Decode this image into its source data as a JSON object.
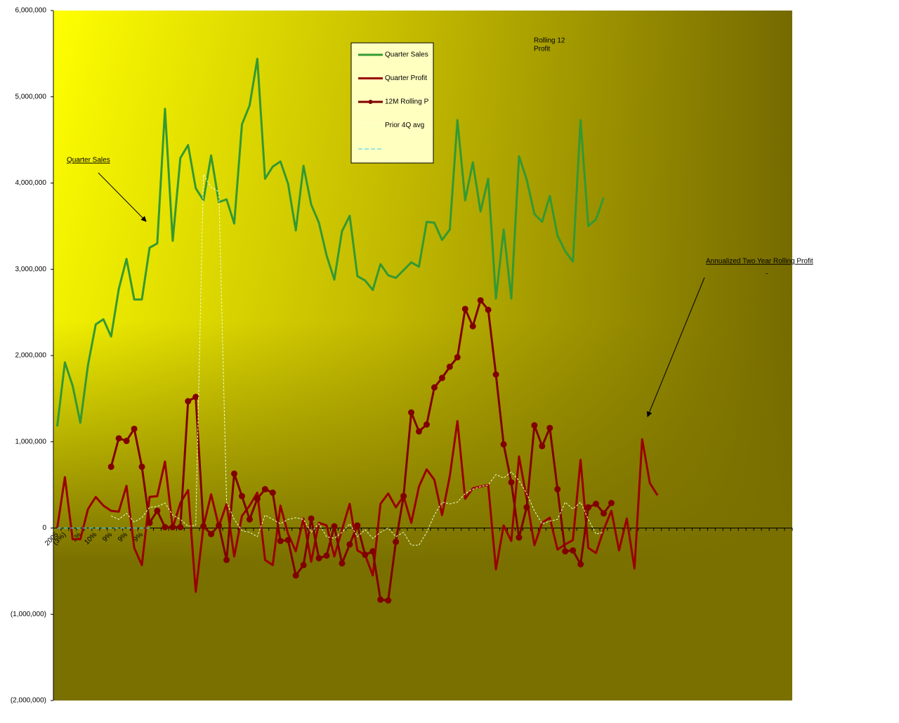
{
  "chart_data": {
    "type": "line",
    "categories": [
      "2005",
      "(3%)",
      null,
      "1%",
      null,
      "10%",
      null,
      "9%",
      null,
      "9%",
      null,
      "9%",
      null,
      null,
      null,
      null,
      null,
      null,
      null,
      null,
      null,
      null,
      null,
      null,
      null,
      null,
      null,
      null,
      null,
      null,
      null,
      null,
      null,
      null,
      null,
      null,
      null,
      null,
      null,
      null,
      null,
      null,
      null,
      null,
      null,
      null,
      null,
      null,
      null,
      null,
      null,
      null,
      null,
      null,
      null,
      null,
      null,
      null,
      null,
      null,
      null,
      null,
      null,
      null,
      null,
      null,
      null,
      null,
      null,
      null,
      null,
      null,
      null,
      null,
      null,
      null,
      null,
      null,
      null,
      null,
      null,
      null,
      null,
      null,
      null,
      null,
      null,
      null,
      null,
      null,
      null,
      null,
      null,
      null,
      null,
      null
    ],
    "series": [
      {
        "name": "Quarter Sales",
        "color": "#339933",
        "values": [
          1180000,
          1920000,
          1650000,
          1220000,
          1890000,
          2360000,
          2420000,
          2220000,
          2770000,
          3120000,
          2650000,
          2650000,
          3250000,
          3300000,
          4860000,
          3330000,
          4290000,
          4440000,
          3940000,
          3800000,
          4320000,
          3780000,
          3810000,
          3530000,
          4680000,
          4900000,
          5440000,
          4050000,
          4190000,
          4250000,
          3990000,
          3450000,
          4200000,
          3750000,
          3540000,
          3160000,
          2880000,
          3440000,
          3620000,
          2920000,
          2870000,
          2760000,
          3060000,
          2930000,
          2900000,
          2990000,
          3080000,
          3030000,
          3550000,
          3540000,
          3340000,
          3460000,
          4730000,
          3800000,
          4240000,
          3670000,
          4050000,
          2660000,
          3460000,
          2660000,
          4310000,
          4040000,
          3640000,
          3550000,
          3850000,
          3390000,
          3210000,
          3090000,
          4730000,
          3500000,
          3580000,
          3830000,
          null,
          null,
          null,
          null,
          null,
          null,
          null,
          null,
          null,
          null,
          null,
          null,
          null,
          null,
          null,
          null,
          null,
          null,
          null,
          null,
          null,
          null,
          null,
          null
        ]
      },
      {
        "name": "Quarter Profit",
        "color": "#990000",
        "values": [
          0,
          590000,
          -130000,
          -130000,
          220000,
          360000,
          260000,
          200000,
          190000,
          490000,
          -230000,
          -430000,
          360000,
          370000,
          770000,
          0,
          290000,
          440000,
          -740000,
          20000,
          390000,
          20000,
          280000,
          -330000,
          140000,
          260000,
          410000,
          -370000,
          -430000,
          260000,
          -70000,
          -270000,
          110000,
          -390000,
          60000,
          30000,
          -330000,
          -20000,
          280000,
          -260000,
          -310000,
          -550000,
          280000,
          400000,
          240000,
          370000,
          60000,
          480000,
          680000,
          560000,
          150000,
          600000,
          1240000,
          340000,
          460000,
          480000,
          500000,
          -480000,
          30000,
          -150000,
          830000,
          340000,
          -200000,
          60000,
          120000,
          -250000,
          -190000,
          -140000,
          790000,
          -230000,
          -290000,
          -20000,
          200000,
          -260000,
          110000,
          -470000,
          1030000,
          520000,
          380000,
          null,
          null,
          null,
          null,
          null,
          null,
          null,
          null,
          null,
          null,
          null,
          null,
          null,
          null,
          null,
          null,
          null
        ]
      },
      {
        "name": "12M Rolling P",
        "color": "#800000",
        "markers": true,
        "values": [
          null,
          null,
          null,
          null,
          null,
          null,
          null,
          710000,
          1040000,
          1010000,
          1150000,
          710000,
          60000,
          200000,
          10000,
          10000,
          10000,
          1470000,
          1520000,
          20000,
          -70000,
          30000,
          -370000,
          630000,
          370000,
          100000,
          340000,
          450000,
          410000,
          -150000,
          -140000,
          -550000,
          -430000,
          110000,
          -350000,
          -320000,
          20000,
          -410000,
          -190000,
          30000,
          -310000,
          -270000,
          -830000,
          -840000,
          -160000,
          370000,
          1340000,
          1120000,
          1200000,
          1630000,
          1740000,
          1870000,
          1980000,
          2540000,
          2340000,
          2640000,
          2530000,
          1780000,
          970000,
          530000,
          -110000,
          240000,
          1190000,
          950000,
          1160000,
          450000,
          -270000,
          -260000,
          -420000,
          240000,
          280000,
          170000,
          290000,
          null,
          null,
          null,
          null,
          null,
          null,
          null,
          null,
          null,
          null,
          null,
          null,
          null,
          null,
          null,
          null,
          null,
          null,
          null,
          null,
          null,
          null,
          null
        ]
      },
      {
        "name": "Prior 4Q avg",
        "color": "#e8ffc8",
        "dash": "3,2",
        "values": [
          null,
          null,
          null,
          null,
          null,
          null,
          null,
          140000,
          100000,
          170000,
          70000,
          120000,
          240000,
          250000,
          290000,
          150000,
          100000,
          20000,
          30000,
          4100000,
          3950000,
          3900000,
          300000,
          100000,
          -30000,
          -50000,
          -100000,
          150000,
          100000,
          50000,
          100000,
          120000,
          100000,
          -50000,
          50000,
          -100000,
          -120000,
          -50000,
          50000,
          -100000,
          -20000,
          -120000,
          -50000,
          0,
          -100000,
          -50000,
          -200000,
          -200000,
          -50000,
          150000,
          300000,
          280000,
          300000,
          400000,
          450000,
          480000,
          500000,
          620000,
          580000,
          650000,
          550000,
          400000,
          200000,
          50000,
          80000,
          100000,
          300000,
          220000,
          300000,
          100000,
          -70000,
          -50000,
          null,
          null,
          null,
          null,
          null,
          null,
          null,
          null,
          null,
          null,
          null,
          null,
          null,
          null,
          null,
          null,
          null,
          null,
          null,
          null,
          null,
          null,
          null,
          null
        ]
      },
      {
        "color": "#33ccff",
        "dash": "6,3",
        "values": [
          0,
          0,
          0,
          0,
          0,
          0,
          0,
          0,
          0,
          0,
          0,
          0,
          0,
          null,
          null,
          null,
          null,
          null,
          null,
          null,
          null,
          null,
          null,
          null,
          null,
          null,
          null,
          null,
          null,
          null,
          null,
          null,
          null,
          null,
          null,
          null,
          null,
          null,
          null,
          null,
          null,
          null,
          null,
          null,
          null,
          null,
          null,
          null,
          null,
          null,
          null,
          null,
          null,
          null,
          null,
          null,
          null,
          null,
          null,
          null,
          null,
          null,
          null,
          null,
          null,
          null,
          null,
          null,
          null,
          null,
          null,
          null,
          null,
          null,
          null,
          null,
          null,
          null,
          null,
          null,
          null,
          null,
          null,
          null,
          null,
          null,
          null,
          null,
          null,
          null,
          null,
          null,
          null,
          null,
          null,
          null
        ]
      }
    ],
    "ylim": [
      -2000000,
      6000000
    ],
    "yticks": [
      {
        "value": -2000000,
        "label": "(2,000,000)"
      },
      {
        "value": -1000000,
        "label": "(1,000,000)"
      },
      0,
      {
        "value": 1000000,
        "label": "1,000,000"
      },
      {
        "value": 2000000,
        "label": "2,000,000"
      },
      {
        "value": 3000000,
        "label": "3,000,000"
      },
      {
        "value": 4000000,
        "label": "4,000,000"
      },
      {
        "value": 5000000,
        "label": "5,000,000"
      },
      {
        "value": 6000000,
        "label": "6,000,000"
      }
    ],
    "legend": "top-center",
    "annotations": [
      "Rolling 12",
      "Profit",
      "Quarter Sales",
      "Annualized Two Year Rolling Profit",
      "-"
    ]
  }
}
